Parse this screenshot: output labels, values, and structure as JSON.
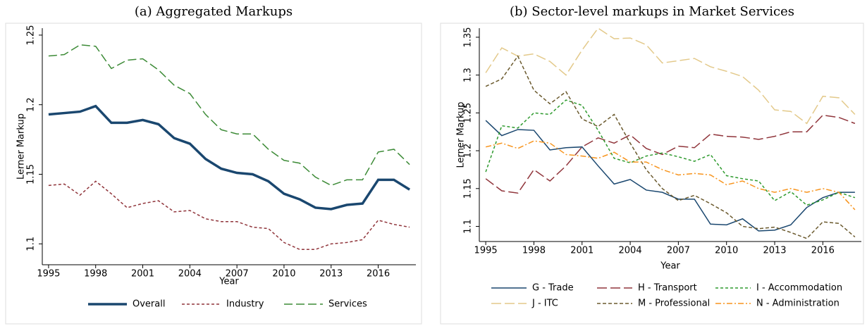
{
  "chart_data": [
    {
      "type": "line",
      "title": "(a) Aggregated Markups",
      "x_label": "Year",
      "y_label": "Lerner Markup",
      "x": [
        1995,
        1996,
        1997,
        1998,
        1999,
        2000,
        2001,
        2002,
        2003,
        2004,
        2005,
        2006,
        2007,
        2008,
        2009,
        2010,
        2011,
        2012,
        2013,
        2014,
        2015,
        2016,
        2017,
        2018
      ],
      "xlim": [
        1994.6,
        2018.4
      ],
      "xticks": [
        1995,
        1998,
        2001,
        2004,
        2007,
        2010,
        2013,
        2016
      ],
      "ylim": [
        1.085,
        1.255
      ],
      "yticks": [
        1.1,
        1.15,
        1.2,
        1.25
      ],
      "legend": "bottom",
      "series": [
        {
          "name": "Overall",
          "color": "#1a476f",
          "values": [
            1.193,
            1.194,
            1.195,
            1.199,
            1.187,
            1.187,
            1.189,
            1.186,
            1.176,
            1.172,
            1.161,
            1.154,
            1.151,
            1.15,
            1.145,
            1.136,
            1.132,
            1.126,
            1.125,
            1.128,
            1.129,
            1.146,
            1.146,
            1.139
          ]
        },
        {
          "name": "Industry",
          "color": "#90353b",
          "values": [
            1.142,
            1.143,
            1.135,
            1.145,
            1.136,
            1.126,
            1.129,
            1.131,
            1.123,
            1.124,
            1.118,
            1.116,
            1.116,
            1.112,
            1.111,
            1.101,
            1.096,
            1.096,
            1.1,
            1.101,
            1.103,
            1.117,
            1.114,
            1.112
          ]
        },
        {
          "name": "Services",
          "color": "#3d8b37",
          "values": [
            1.235,
            1.236,
            1.243,
            1.242,
            1.226,
            1.232,
            1.233,
            1.225,
            1.214,
            1.208,
            1.193,
            1.182,
            1.179,
            1.179,
            1.168,
            1.16,
            1.158,
            1.148,
            1.142,
            1.146,
            1.146,
            1.166,
            1.168,
            1.157
          ]
        }
      ]
    },
    {
      "type": "line",
      "title": "(b) Sector-level markups in Market Services",
      "x_label": "Year",
      "y_label": "Lerner Markup",
      "x": [
        1995,
        1996,
        1997,
        1998,
        1999,
        2000,
        2001,
        2002,
        2003,
        2004,
        2005,
        2006,
        2007,
        2008,
        2009,
        2010,
        2011,
        2012,
        2013,
        2014,
        2015,
        2016,
        2017,
        2018
      ],
      "xlim": [
        1994.6,
        2018.4
      ],
      "xticks": [
        1995,
        1998,
        2001,
        2004,
        2007,
        2010,
        2013,
        2016
      ],
      "ylim": [
        1.08,
        1.362
      ],
      "yticks": [
        1.1,
        1.15,
        1.2,
        1.25,
        1.3,
        1.35
      ],
      "legend": "bottom",
      "series": [
        {
          "name": "G - Trade",
          "color": "#1a476f",
          "values": [
            1.24,
            1.22,
            1.228,
            1.227,
            1.201,
            1.204,
            1.205,
            1.18,
            1.156,
            1.162,
            1.148,
            1.145,
            1.136,
            1.136,
            1.103,
            1.102,
            1.11,
            1.094,
            1.095,
            1.102,
            1.125,
            1.138,
            1.145,
            1.145
          ]
        },
        {
          "name": "H - Transport",
          "color": "#90353b",
          "values": [
            1.163,
            1.147,
            1.144,
            1.175,
            1.16,
            1.18,
            1.205,
            1.217,
            1.21,
            1.221,
            1.203,
            1.195,
            1.206,
            1.204,
            1.222,
            1.219,
            1.218,
            1.215,
            1.219,
            1.225,
            1.225,
            1.247,
            1.244,
            1.236
          ]
        },
        {
          "name": "I - Accommodation",
          "color": "#2e9a2e",
          "values": [
            1.172,
            1.233,
            1.23,
            1.25,
            1.248,
            1.267,
            1.26,
            1.227,
            1.19,
            1.184,
            1.193,
            1.197,
            1.192,
            1.186,
            1.195,
            1.167,
            1.163,
            1.16,
            1.134,
            1.146,
            1.128,
            1.135,
            1.145,
            1.138
          ]
        },
        {
          "name": "J - ITC",
          "color": "#e3c98a",
          "values": [
            1.303,
            1.336,
            1.325,
            1.328,
            1.318,
            1.3,
            1.333,
            1.362,
            1.348,
            1.349,
            1.34,
            1.316,
            1.319,
            1.322,
            1.311,
            1.305,
            1.298,
            1.28,
            1.254,
            1.252,
            1.236,
            1.272,
            1.27,
            1.248
          ]
        },
        {
          "name": "M - Professional",
          "color": "#6b5a2e",
          "values": [
            1.285,
            1.295,
            1.325,
            1.28,
            1.262,
            1.278,
            1.242,
            1.232,
            1.248,
            1.21,
            1.175,
            1.15,
            1.134,
            1.141,
            1.13,
            1.118,
            1.1,
            1.097,
            1.099,
            1.092,
            1.084,
            1.106,
            1.104,
            1.086
          ]
        },
        {
          "name": "N - Administration",
          "color": "#f7941d",
          "values": [
            1.205,
            1.21,
            1.203,
            1.213,
            1.21,
            1.195,
            1.193,
            1.19,
            1.198,
            1.185,
            1.185,
            1.175,
            1.168,
            1.17,
            1.168,
            1.155,
            1.16,
            1.15,
            1.145,
            1.15,
            1.145,
            1.15,
            1.145,
            1.122
          ]
        }
      ]
    }
  ]
}
